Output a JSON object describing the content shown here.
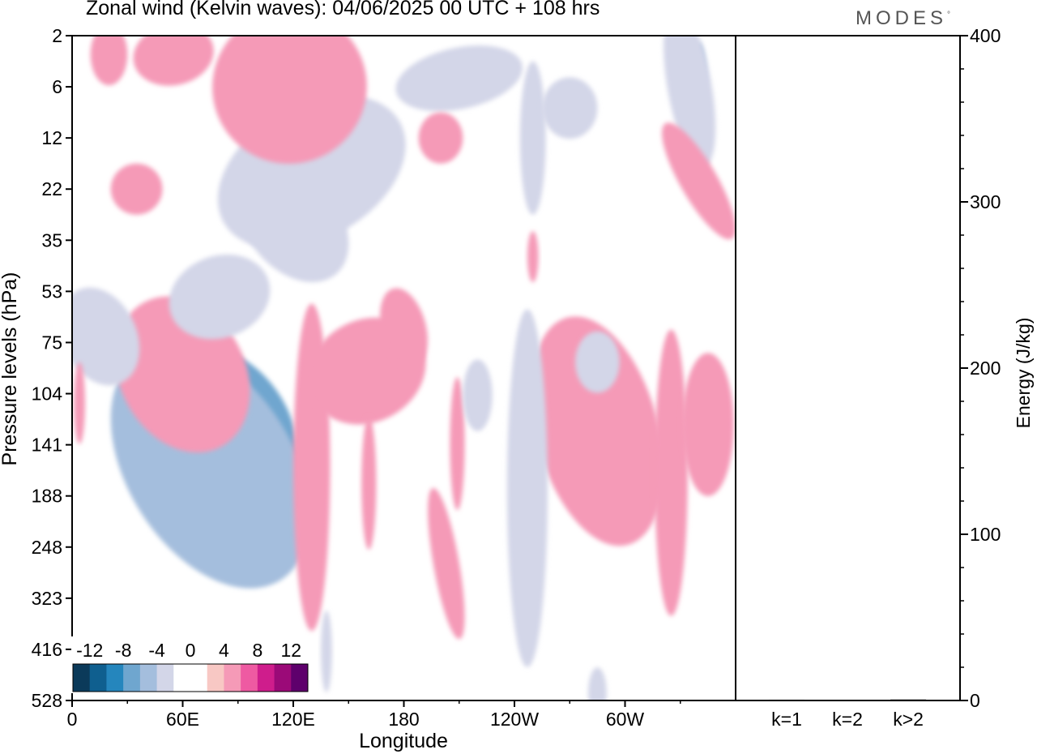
{
  "header": {
    "title": "Zonal wind (Kelvin waves):  04/06/2025  00 UTC  + 108 hrs",
    "brand": "MODES",
    "brand_mark": "°"
  },
  "colors": {
    "negative": [
      "#0b3a5a",
      "#0f5f8f",
      "#2586bd",
      "#6fa6cf",
      "#a4bedd",
      "#d3d6e8"
    ],
    "zero": "#ffffff",
    "positive": [
      "#f8c8c4",
      "#f59ab7",
      "#ee5aa2",
      "#cf1d8c",
      "#9b0a78",
      "#5e006c"
    ],
    "bar": "#000000"
  },
  "chart_data": [
    {
      "type": "heatmap",
      "title": "",
      "xlabel": "Longitude",
      "ylabel": "Pressure levels (hPa)",
      "x_ticks": [
        "0",
        "60E",
        "120E",
        "180",
        "120W",
        "60W"
      ],
      "x_tick_degrees": [
        0,
        60,
        120,
        180,
        240,
        300
      ],
      "xlim": [
        0,
        360
      ],
      "y_ticks": [
        "2",
        "6",
        "12",
        "22",
        "35",
        "53",
        "75",
        "104",
        "141",
        "188",
        "248",
        "323",
        "416",
        "528"
      ],
      "colorbar": {
        "labels": [
          "-12",
          "-8",
          "-4",
          "0",
          "4",
          "8",
          "12"
        ],
        "levels": [
          -14,
          -12,
          -10,
          -8,
          -6,
          -4,
          -2,
          2,
          4,
          6,
          8,
          10,
          12,
          14
        ]
      },
      "features": [
        {
          "lon": 80,
          "level": 122,
          "value": -14,
          "rx": 5,
          "ry": 0.45,
          "tilt": -35
        },
        {
          "lon": 70,
          "level": 128,
          "value": -11,
          "rx": 12,
          "ry": 0.9,
          "tilt": -35
        },
        {
          "lon": 48,
          "level": 165,
          "value": -9,
          "rx": 7,
          "ry": 0.8,
          "tilt": -10
        },
        {
          "lon": 72,
          "level": 140,
          "value": -7,
          "rx": 30,
          "ry": 1.3,
          "tilt": -33
        },
        {
          "lon": 80,
          "level": 130,
          "value": -5,
          "rx": 38,
          "ry": 1.8,
          "tilt": -35
        },
        {
          "lon": 75,
          "level": 160,
          "value": -3,
          "rx": 45,
          "ry": 2.6,
          "tilt": -32
        },
        {
          "lon": 62,
          "level": 88,
          "value": 8,
          "rx": 12,
          "ry": 0.5,
          "tilt": -28
        },
        {
          "lon": 60,
          "level": 90,
          "value": 6,
          "rx": 22,
          "ry": 0.9,
          "tilt": -28
        },
        {
          "lon": 60,
          "level": 92,
          "value": 3,
          "rx": 34,
          "ry": 1.6,
          "tilt": -28
        },
        {
          "lon": 15,
          "level": 72,
          "value": -2,
          "rx": 20,
          "ry": 1.0,
          "tilt": -25
        },
        {
          "lon": 127,
          "level": 150,
          "value": 6,
          "rx": 4,
          "ry": 0.9,
          "tilt": 0
        },
        {
          "lon": 130,
          "level": 160,
          "value": 3,
          "rx": 10,
          "ry": 3.2,
          "tilt": 0
        },
        {
          "lon": 160,
          "level": 90,
          "value": 3,
          "rx": 33,
          "ry": 1.0,
          "tilt": -28
        },
        {
          "lon": 180,
          "level": 68,
          "value": 3,
          "rx": 12,
          "ry": 0.8,
          "tilt": -15
        },
        {
          "lon": 161,
          "level": 175,
          "value": 3,
          "rx": 4,
          "ry": 1.3,
          "tilt": 0
        },
        {
          "lon": 209,
          "level": 140,
          "value": 3,
          "rx": 4,
          "ry": 1.3,
          "tilt": 0
        },
        {
          "lon": 203,
          "level": 270,
          "value": 3,
          "rx": 7,
          "ry": 1.5,
          "tilt": -10
        },
        {
          "lon": 282,
          "level": 135,
          "value": 9,
          "rx": 5,
          "ry": 1.2,
          "tilt": 0
        },
        {
          "lon": 278,
          "level": 135,
          "value": 6,
          "rx": 13,
          "ry": 1.8,
          "tilt": -10
        },
        {
          "lon": 285,
          "level": 130,
          "value": 3,
          "rx": 33,
          "ry": 2.3,
          "tilt": -15
        },
        {
          "lon": 325,
          "level": 155,
          "value": 5,
          "rx": 3,
          "ry": 1.0,
          "tilt": 0
        },
        {
          "lon": 325,
          "level": 165,
          "value": 3,
          "rx": 9,
          "ry": 2.8,
          "tilt": 0
        },
        {
          "lon": 345,
          "level": 125,
          "value": 3,
          "rx": 14,
          "ry": 1.4,
          "tilt": 0
        },
        {
          "lon": 245,
          "level": 150,
          "value": -5,
          "rx": 2,
          "ry": 0.9,
          "tilt": 0
        },
        {
          "lon": 247,
          "level": 180,
          "value": -2,
          "rx": 11,
          "ry": 3.5,
          "tilt": 0
        },
        {
          "lon": 220,
          "level": 105,
          "value": -2,
          "rx": 8,
          "ry": 0.7,
          "tilt": 0
        },
        {
          "lon": 285,
          "level": 85,
          "value": -2,
          "rx": 12,
          "ry": 0.6,
          "tilt": 0
        },
        {
          "lon": 130,
          "level": 18,
          "value": -2,
          "rx": 55,
          "ry": 1.3,
          "tilt": -30
        },
        {
          "lon": 120,
          "level": 30,
          "value": -2,
          "rx": 25,
          "ry": 1.3,
          "tilt": -40
        },
        {
          "lon": 80,
          "level": 55,
          "value": -2,
          "rx": 28,
          "ry": 0.8,
          "tilt": -20
        },
        {
          "lon": 210,
          "level": 5,
          "value": -2,
          "rx": 35,
          "ry": 0.6,
          "tilt": -12
        },
        {
          "lon": 250,
          "level": 12,
          "value": -2,
          "rx": 7,
          "ry": 1.5,
          "tilt": 0
        },
        {
          "lon": 340,
          "level": 5,
          "value": -4,
          "rx": 4,
          "ry": 0.7,
          "tilt": 0
        },
        {
          "lon": 335,
          "level": 6,
          "value": -2,
          "rx": 12,
          "ry": 1.6,
          "tilt": -10
        },
        {
          "lon": 270,
          "level": 8,
          "value": -2,
          "rx": 15,
          "ry": 0.6,
          "tilt": 0
        },
        {
          "lon": 130,
          "level": 5,
          "value": 8,
          "rx": 10,
          "ry": 0.5,
          "tilt": -30
        },
        {
          "lon": 130,
          "level": 5,
          "value": 5,
          "rx": 22,
          "ry": 0.9,
          "tilt": -30
        },
        {
          "lon": 118,
          "level": 6,
          "value": 3,
          "rx": 42,
          "ry": 1.5,
          "tilt": -30
        },
        {
          "lon": 55,
          "level": 3,
          "value": 3,
          "rx": 22,
          "ry": 0.6,
          "tilt": -12
        },
        {
          "lon": 200,
          "level": 12,
          "value": 3,
          "rx": 12,
          "ry": 0.5,
          "tilt": 0
        },
        {
          "lon": 340,
          "level": 20,
          "value": 3,
          "rx": 10,
          "ry": 1.3,
          "tilt": -30
        },
        {
          "lon": 35,
          "level": 22,
          "value": 3,
          "rx": 14,
          "ry": 0.5,
          "tilt": 0
        },
        {
          "lon": 250,
          "level": 40,
          "value": 3,
          "rx": 3,
          "ry": 0.5,
          "tilt": 0
        },
        {
          "lon": 4,
          "level": 110,
          "value": 3,
          "rx": 3,
          "ry": 0.8,
          "tilt": 0
        },
        {
          "lon": 20,
          "level": 3,
          "value": 3,
          "rx": 10,
          "ry": 0.6,
          "tilt": 0
        },
        {
          "lon": 285,
          "level": 510,
          "value": -2,
          "rx": 5,
          "ry": 0.5,
          "tilt": 0
        },
        {
          "lon": 138,
          "level": 420,
          "value": -2,
          "rx": 3,
          "ry": 0.8,
          "tilt": 0
        },
        {
          "lon": 280,
          "level": 12,
          "value": 0,
          "rx": 0,
          "ry": 0,
          "tilt": 0
        }
      ]
    },
    {
      "type": "bar",
      "title": "",
      "xlabel": "",
      "ylabel": "Energy (J/kg)",
      "categories": [
        "k=1",
        "k=2",
        "k>2"
      ],
      "values": [
        0.5,
        0.4,
        0.6
      ],
      "ylim": [
        0,
        400
      ],
      "y_ticks": [
        "0",
        "100",
        "200",
        "300",
        "400"
      ]
    }
  ]
}
